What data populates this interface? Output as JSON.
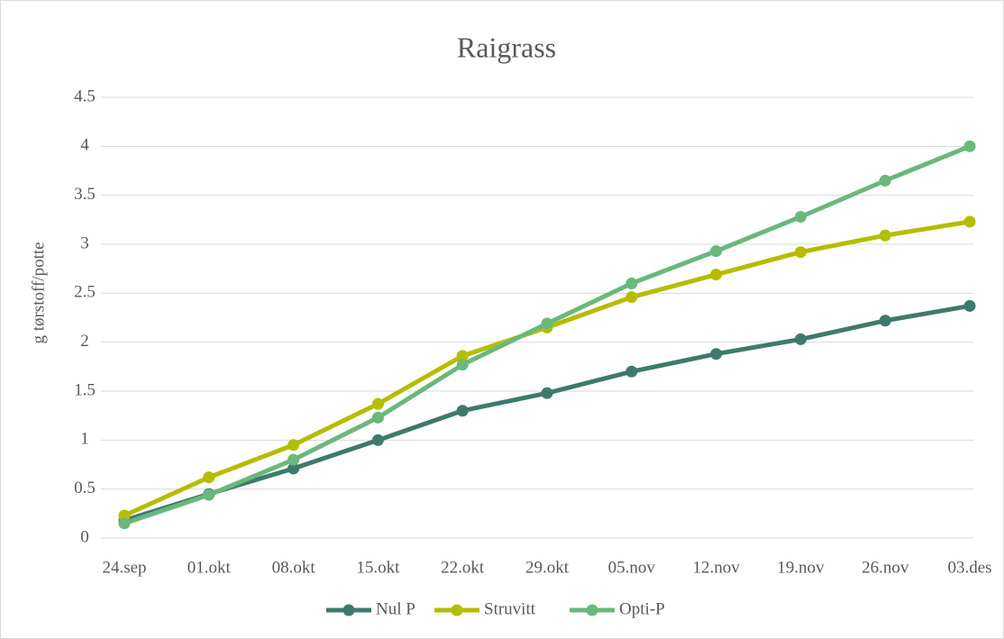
{
  "chart_data": {
    "type": "line",
    "title": "Raigrass",
    "ylabel": "g tørstoff/potte",
    "categories": [
      "24.sep",
      "01.okt",
      "08.okt",
      "15.okt",
      "22.okt",
      "29.okt",
      "05.nov",
      "12.nov",
      "19.nov",
      "26.nov",
      "03.des"
    ],
    "series": [
      {
        "name": "Nul P",
        "color": "#3e7a6c",
        "values": [
          0.18,
          0.45,
          0.71,
          1.0,
          1.3,
          1.48,
          1.7,
          1.88,
          2.03,
          2.22,
          2.37
        ]
      },
      {
        "name": "Struvitt",
        "color": "#b5bd00",
        "values": [
          0.23,
          0.62,
          0.95,
          1.37,
          1.86,
          2.15,
          2.46,
          2.69,
          2.92,
          3.09,
          3.23
        ]
      },
      {
        "name": "Opti-P",
        "color": "#6ab87a",
        "values": [
          0.15,
          0.44,
          0.8,
          1.23,
          1.77,
          2.19,
          2.6,
          2.93,
          3.28,
          3.65,
          4.0
        ]
      }
    ],
    "ylim": [
      0,
      4.5
    ],
    "yticks": [
      0,
      0.5,
      1,
      1.5,
      2,
      2.5,
      3,
      3.5,
      4,
      4.5
    ],
    "grid": true,
    "legend": "bottom"
  }
}
